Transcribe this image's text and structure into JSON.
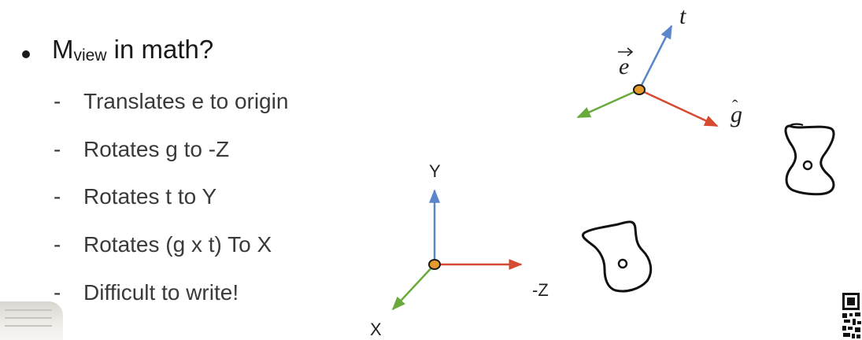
{
  "slide": {
    "main_bullet": {
      "prefix": "M",
      "subscript": "view",
      "suffix": " in math?"
    },
    "sub_items": [
      {
        "dash": "-",
        "text": "Translates e to origin"
      },
      {
        "dash": "-",
        "text": "Rotates g to -Z"
      },
      {
        "dash": "-",
        "text": "Rotates t to Y"
      },
      {
        "dash": "-",
        "text": "Rotates (g x t) To X"
      },
      {
        "dash": "-",
        "text": "Difficult to write!"
      }
    ]
  },
  "camera_frame": {
    "eye_label": "e",
    "up_label": "t",
    "gaze_label": "g",
    "colors": {
      "up": "#5b86c9",
      "gaze": "#d64a32",
      "side": "#6aaa3c",
      "origin": "#e69a2b"
    }
  },
  "world_axes": {
    "y_label": "Y",
    "z_label": "-Z",
    "x_label": "X",
    "colors": {
      "y": "#5b86c9",
      "z": "#d64a32",
      "x": "#6aaa3c",
      "origin": "#e69a2b"
    }
  },
  "icons": {
    "object": "vase-outline-icon",
    "qr": "qr-code-icon",
    "corner": "photo-thumbnail"
  }
}
